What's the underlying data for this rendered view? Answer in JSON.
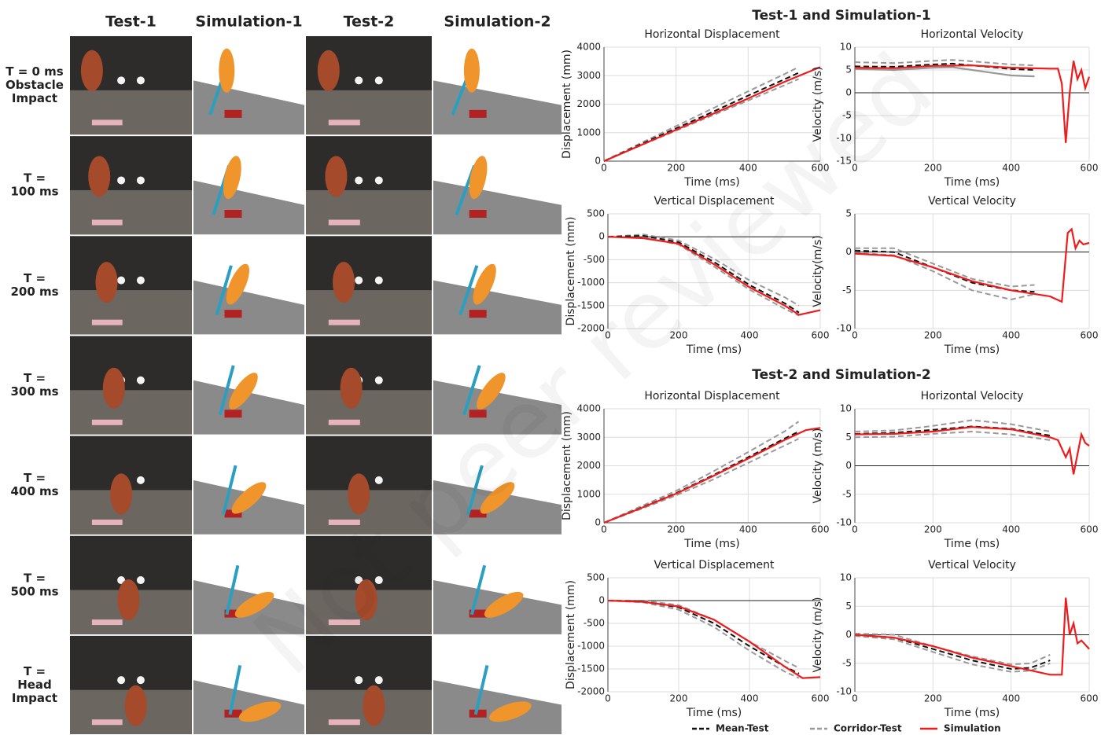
{
  "photo_grid": {
    "columns": [
      "Test-1",
      "Simulation-1",
      "Test-2",
      "Simulation-2"
    ],
    "rows": [
      [
        "T = 0 ms",
        "Obstacle",
        "Impact"
      ],
      [
        "T =",
        "100 ms"
      ],
      [
        "T =",
        "200 ms"
      ],
      [
        "T =",
        "300 ms"
      ],
      [
        "T =",
        "400 ms"
      ],
      [
        "T =",
        "500 ms"
      ],
      [
        "T =",
        "Head",
        "Impact"
      ]
    ]
  },
  "sections": [
    "Test-1 and Simulation-1",
    "Test-2 and Simulation-2"
  ],
  "legend": [
    {
      "name": "Mean-Test",
      "color": "#111111",
      "dash": true
    },
    {
      "name": "Corridor-Test",
      "color": "#999999",
      "dash": true
    },
    {
      "name": "Simulation",
      "color": "#ee1c1c",
      "dash": false
    }
  ],
  "watermark": "Not peer reviewed",
  "chart_data": [
    {
      "type": "line",
      "title": "Horizontal Displacement",
      "xlabel": "Time (ms)",
      "ylabel": "Displacement (mm)",
      "grid": true,
      "xlim": [
        0,
        600
      ],
      "xticks": [
        0,
        200,
        400,
        600
      ],
      "ylim": [
        0,
        4000
      ],
      "yticks": [
        0,
        1000,
        2000,
        3000,
        4000
      ],
      "series": [
        {
          "color": "#999999",
          "dash": true,
          "x": [
            0,
            100,
            200,
            300,
            400,
            500,
            540
          ],
          "values": [
            0,
            620,
            1230,
            1840,
            2450,
            3050,
            3300
          ]
        },
        {
          "color": "#999999",
          "dash": true,
          "x": [
            0,
            100,
            200,
            300,
            400,
            500,
            540
          ],
          "values": [
            0,
            540,
            1070,
            1600,
            2130,
            2660,
            2880
          ]
        },
        {
          "color": "#111111",
          "dash": true,
          "x": [
            0,
            100,
            200,
            300,
            400,
            500,
            540
          ],
          "values": [
            0,
            580,
            1150,
            1720,
            2300,
            2870,
            3100
          ]
        },
        {
          "color": "#ee1c1c",
          "dash": false,
          "x": [
            0,
            100,
            200,
            300,
            400,
            500,
            600
          ],
          "values": [
            0,
            550,
            1100,
            1650,
            2200,
            2780,
            3300
          ]
        }
      ]
    },
    {
      "type": "line",
      "title": "Horizontal Velocity",
      "xlabel": "Time (ms)",
      "ylabel": "Velocity (m/s)",
      "grid": true,
      "xlim": [
        0,
        600
      ],
      "xticks": [
        0,
        200,
        400,
        600
      ],
      "ylim": [
        -15,
        10
      ],
      "yticks": [
        -15,
        -10,
        -5,
        0,
        5,
        10
      ],
      "series": [
        {
          "color": "#999999",
          "dash": true,
          "x": [
            0,
            100,
            200,
            250,
            300,
            400,
            460
          ],
          "values": [
            6.7,
            6.5,
            7.0,
            7.2,
            6.9,
            6.2,
            6.0
          ]
        },
        {
          "color": "#999999",
          "dash": false,
          "x": [
            0,
            100,
            200,
            250,
            300,
            400,
            460
          ],
          "values": [
            5.2,
            5.0,
            5.5,
            5.6,
            5.0,
            3.8,
            3.6
          ]
        },
        {
          "color": "#111111",
          "dash": true,
          "x": [
            0,
            100,
            200,
            250,
            300,
            400,
            460
          ],
          "values": [
            5.8,
            5.7,
            6.2,
            6.4,
            6.0,
            5.2,
            5.0
          ]
        },
        {
          "color": "#ee1c1c",
          "dash": false,
          "x": [
            0,
            100,
            200,
            300,
            400,
            500,
            520,
            530,
            540,
            550,
            560,
            570,
            580,
            590,
            600
          ],
          "values": [
            5.5,
            5.4,
            5.9,
            6.0,
            5.5,
            5.3,
            5.3,
            2,
            -11,
            0,
            7,
            3,
            5,
            1,
            3.5
          ]
        }
      ]
    },
    {
      "type": "line",
      "title": "Vertical Displacement",
      "xlabel": "Time (ms)",
      "ylabel": "Displacement (mm)",
      "grid": true,
      "xlim": [
        0,
        600
      ],
      "xticks": [
        0,
        200,
        400,
        600
      ],
      "ylim": [
        -2000,
        500
      ],
      "yticks": [
        -2000,
        -1500,
        -1000,
        -500,
        0,
        500
      ],
      "series": [
        {
          "color": "#999999",
          "dash": true,
          "x": [
            0,
            100,
            200,
            300,
            400,
            500,
            540
          ],
          "values": [
            0,
            50,
            -80,
            -480,
            -950,
            -1320,
            -1500
          ]
        },
        {
          "color": "#999999",
          "dash": true,
          "x": [
            0,
            100,
            200,
            300,
            400,
            500,
            540
          ],
          "values": [
            0,
            -10,
            -170,
            -650,
            -1150,
            -1570,
            -1720
          ]
        },
        {
          "color": "#111111",
          "dash": true,
          "x": [
            0,
            100,
            200,
            300,
            400,
            500,
            540
          ],
          "values": [
            0,
            20,
            -120,
            -550,
            -1050,
            -1450,
            -1650
          ]
        },
        {
          "color": "#ee1c1c",
          "dash": false,
          "x": [
            0,
            100,
            200,
            300,
            400,
            500,
            540,
            600
          ],
          "values": [
            0,
            -30,
            -150,
            -600,
            -1100,
            -1500,
            -1700,
            -1600
          ]
        }
      ]
    },
    {
      "type": "line",
      "title": "Vertical Velocity",
      "xlabel": "Time (ms)",
      "ylabel": "Velocity(m/s)",
      "grid": true,
      "xlim": [
        0,
        600
      ],
      "xticks": [
        0,
        200,
        400,
        600
      ],
      "ylim": [
        -10,
        5
      ],
      "yticks": [
        -10,
        -5,
        0,
        5
      ],
      "series": [
        {
          "color": "#999999",
          "dash": true,
          "x": [
            0,
            100,
            200,
            300,
            400,
            460
          ],
          "values": [
            0.5,
            0.5,
            -1.5,
            -3.5,
            -4.5,
            -4.3
          ]
        },
        {
          "color": "#999999",
          "dash": true,
          "x": [
            0,
            100,
            200,
            300,
            400,
            460
          ],
          "values": [
            -0.1,
            -0.4,
            -2.5,
            -5,
            -6.2,
            -5.5
          ]
        },
        {
          "color": "#111111",
          "dash": true,
          "x": [
            0,
            100,
            200,
            300,
            400,
            460
          ],
          "values": [
            0.2,
            0,
            -2,
            -4,
            -5,
            -5.2
          ]
        },
        {
          "color": "#ee1c1c",
          "dash": false,
          "x": [
            0,
            100,
            200,
            300,
            400,
            500,
            530,
            545,
            555,
            565,
            575,
            585,
            600
          ],
          "values": [
            -0.2,
            -0.5,
            -2,
            -3.8,
            -5,
            -5.8,
            -6.5,
            2.5,
            3,
            0.5,
            1.5,
            1,
            1.2
          ]
        }
      ]
    },
    {
      "type": "line",
      "title": "Horizontal Displacement",
      "xlabel": "Time (ms)",
      "ylabel": "Displacement (mm)",
      "grid": true,
      "xlim": [
        0,
        600
      ],
      "xticks": [
        0,
        200,
        400,
        600
      ],
      "ylim": [
        0,
        4000
      ],
      "yticks": [
        0,
        1000,
        2000,
        3000,
        4000
      ],
      "series": [
        {
          "color": "#999999",
          "dash": true,
          "x": [
            0,
            100,
            200,
            300,
            400,
            500,
            540
          ],
          "values": [
            0,
            560,
            1120,
            1780,
            2480,
            3200,
            3550
          ]
        },
        {
          "color": "#999999",
          "dash": true,
          "x": [
            0,
            100,
            200,
            300,
            400,
            500,
            540
          ],
          "values": [
            0,
            470,
            960,
            1500,
            2100,
            2700,
            2950
          ]
        },
        {
          "color": "#111111",
          "dash": true,
          "x": [
            0,
            100,
            200,
            300,
            400,
            500,
            540
          ],
          "values": [
            0,
            510,
            1040,
            1650,
            2300,
            2950,
            3200
          ]
        },
        {
          "color": "#ee1c1c",
          "dash": false,
          "x": [
            0,
            100,
            200,
            300,
            400,
            500,
            560,
            600
          ],
          "values": [
            0,
            500,
            1020,
            1620,
            2250,
            2900,
            3250,
            3330
          ]
        }
      ]
    },
    {
      "type": "line",
      "title": "Horizontal Velocity",
      "xlabel": "Time (ms)",
      "ylabel": "Velocity (m/s)",
      "grid": true,
      "xlim": [
        0,
        600
      ],
      "xticks": [
        0,
        200,
        400,
        600
      ],
      "ylim": [
        -10,
        10
      ],
      "yticks": [
        -10,
        -5,
        0,
        5,
        10
      ],
      "series": [
        {
          "color": "#999999",
          "dash": true,
          "x": [
            0,
            100,
            200,
            300,
            400,
            500
          ],
          "values": [
            6,
            6.2,
            7,
            8,
            7.3,
            6
          ]
        },
        {
          "color": "#999999",
          "dash": true,
          "x": [
            0,
            100,
            200,
            300,
            400,
            500
          ],
          "values": [
            5.0,
            5.1,
            5.6,
            6,
            5.5,
            4.5
          ]
        },
        {
          "color": "#111111",
          "dash": true,
          "x": [
            0,
            100,
            200,
            300,
            400,
            500
          ],
          "values": [
            5.6,
            5.8,
            6.3,
            6.9,
            6.5,
            5.3
          ]
        },
        {
          "color": "#ee1c1c",
          "dash": false,
          "x": [
            0,
            100,
            200,
            300,
            400,
            500,
            520,
            540,
            550,
            560,
            570,
            580,
            590,
            600
          ],
          "values": [
            5.5,
            5.6,
            6.0,
            6.8,
            6.4,
            5,
            4.5,
            1.5,
            3,
            -1.5,
            2,
            5.5,
            4,
            3.5
          ]
        }
      ]
    },
    {
      "type": "line",
      "title": "Vertical Displacement",
      "xlabel": "Time (ms)",
      "ylabel": "Displacement (mm)",
      "grid": true,
      "xlim": [
        0,
        600
      ],
      "xticks": [
        0,
        200,
        400,
        600
      ],
      "ylim": [
        -2000,
        500
      ],
      "yticks": [
        -2000,
        -1500,
        -1000,
        -500,
        0,
        500
      ],
      "series": [
        {
          "color": "#999999",
          "dash": true,
          "x": [
            0,
            100,
            200,
            300,
            400,
            500,
            540
          ],
          "values": [
            0,
            0,
            -100,
            -420,
            -900,
            -1320,
            -1480
          ]
        },
        {
          "color": "#999999",
          "dash": true,
          "x": [
            0,
            100,
            200,
            300,
            400,
            500,
            540
          ],
          "values": [
            0,
            -40,
            -200,
            -580,
            -1100,
            -1560,
            -1700
          ]
        },
        {
          "color": "#111111",
          "dash": true,
          "x": [
            0,
            100,
            200,
            300,
            400,
            500,
            540
          ],
          "values": [
            0,
            -20,
            -150,
            -500,
            -1000,
            -1450,
            -1600
          ]
        },
        {
          "color": "#ee1c1c",
          "dash": false,
          "x": [
            0,
            100,
            200,
            300,
            400,
            500,
            550,
            600
          ],
          "values": [
            0,
            -30,
            -130,
            -420,
            -900,
            -1450,
            -1700,
            -1680
          ]
        }
      ]
    },
    {
      "type": "line",
      "title": "Vertical Velocity",
      "xlabel": "Time (ms)",
      "ylabel": "Velocity (m/s)",
      "grid": true,
      "xlim": [
        0,
        600
      ],
      "xticks": [
        0,
        200,
        400,
        600
      ],
      "ylim": [
        -10,
        10
      ],
      "yticks": [
        -10,
        -5,
        0,
        5,
        10
      ],
      "series": [
        {
          "color": "#999999",
          "dash": true,
          "x": [
            0,
            100,
            200,
            300,
            400,
            450,
            500
          ],
          "values": [
            0.2,
            0,
            -2,
            -3.8,
            -5.2,
            -5,
            -3.5
          ]
        },
        {
          "color": "#999999",
          "dash": true,
          "x": [
            0,
            100,
            200,
            300,
            400,
            450,
            500
          ],
          "values": [
            -0.2,
            -0.8,
            -3,
            -5.2,
            -6.5,
            -6.3,
            -5
          ]
        },
        {
          "color": "#111111",
          "dash": true,
          "x": [
            0,
            100,
            200,
            300,
            400,
            450,
            500
          ],
          "values": [
            0,
            -0.5,
            -2.5,
            -4.5,
            -6,
            -5.8,
            -4.5
          ]
        },
        {
          "color": "#ee1c1c",
          "dash": false,
          "x": [
            0,
            100,
            200,
            300,
            400,
            500,
            530,
            540,
            550,
            560,
            570,
            580,
            600
          ],
          "values": [
            0,
            -0.5,
            -2,
            -4,
            -5.5,
            -7,
            -7,
            6.5,
            0,
            2,
            -1.5,
            -1,
            -2.5
          ]
        }
      ]
    }
  ]
}
